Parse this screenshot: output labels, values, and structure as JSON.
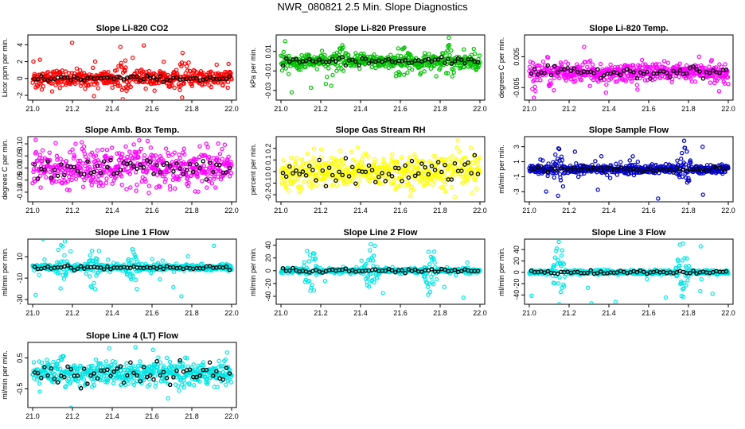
{
  "page": {
    "title": "NWR_080821  2.5 Min. Slope Diagnostics"
  },
  "chart_data": [
    {
      "type": "scatter",
      "title": "Slope Li-820 CO2",
      "ylabel": "Licor ppm per min.",
      "xlim": [
        21.0,
        22.0
      ],
      "ylim": [
        -2.0,
        4.6
      ],
      "xticks": [
        "21.0",
        "21.2",
        "21.4",
        "21.6",
        "21.8",
        "22.0"
      ],
      "yticks": [
        "-2",
        "0",
        "2",
        "4"
      ],
      "point_color": "#ff0000",
      "series_center": 0.0,
      "series_spread": 0.5,
      "outlier_spread": 2.0,
      "mean_spread": 0.15,
      "outlier_regions": [
        21.0,
        21.45,
        21.75
      ]
    },
    {
      "type": "scatter",
      "title": "Slope Li-820 Pressure",
      "ylabel": "kPa per min.",
      "xlim": [
        21.0,
        22.0
      ],
      "ylim": [
        -0.035,
        0.022
      ],
      "xticks": [
        "21.0",
        "21.2",
        "21.4",
        "21.6",
        "21.8",
        "22.0"
      ],
      "yticks": [
        "-0.03",
        "-0.01",
        "0.01"
      ],
      "point_color": "#00c000",
      "series_center": 0.0,
      "series_spread": 0.004,
      "outlier_spread": 0.015,
      "mean_spread": 0.002,
      "outlier_regions": [
        21.3,
        21.6,
        21.85
      ]
    },
    {
      "type": "scatter",
      "title": "Slope Li-820 Temp.",
      "ylabel": "degrees C per min.",
      "xlim": [
        21.0,
        22.0
      ],
      "ylim": [
        -0.0075,
        0.0105
      ],
      "xticks": [
        "21.0",
        "21.2",
        "21.4",
        "21.6",
        "21.8",
        "22.0"
      ],
      "yticks": [
        "-0.005",
        "0.005"
      ],
      "point_color": "#ff00ff",
      "series_center": 0.0,
      "series_spread": 0.0015,
      "outlier_spread": 0.005,
      "mean_spread": 0.0008,
      "outlier_regions": [
        21.02,
        21.1
      ]
    },
    {
      "type": "scatter",
      "title": "Slope Amb. Box Temp.",
      "ylabel": "degrees C per min.",
      "xlim": [
        21.0,
        22.0
      ],
      "ylim": [
        -0.12,
        0.11
      ],
      "xticks": [
        "21.0",
        "21.2",
        "21.4",
        "21.6",
        "21.8",
        "22.0"
      ],
      "yticks": [
        "-0.10",
        "-0.05",
        "0.00",
        "0.05",
        "0.10"
      ],
      "point_color": "#ff00ff",
      "series_center": 0.0,
      "series_spread": 0.04,
      "outlier_spread": 0.07,
      "mean_spread": 0.025,
      "outlier_regions": [
        21.3,
        21.7
      ]
    },
    {
      "type": "scatter",
      "title": "Slope Gas Stream RH",
      "ylabel": "percent per min.",
      "xlim": [
        21.0,
        22.0
      ],
      "ylim": [
        -0.22,
        0.26
      ],
      "xticks": [
        "21.0",
        "21.2",
        "21.4",
        "21.6",
        "21.8",
        "22.0"
      ],
      "yticks": [
        "-0.2",
        "-0.1",
        "0.0",
        "0.1",
        "0.2"
      ],
      "point_color": "#ffff00",
      "series_center": 0.0,
      "series_spread": 0.07,
      "outlier_spread": 0.12,
      "mean_spread": 0.05,
      "outlier_regions": [
        21.2,
        21.4,
        21.7
      ]
    },
    {
      "type": "scatter",
      "title": "Slope Sample Flow",
      "ylabel": "ml/min per min.",
      "xlim": [
        21.0,
        22.0
      ],
      "ylim": [
        -3.7,
        3.7
      ],
      "xticks": [
        "21.0",
        "21.2",
        "21.4",
        "21.6",
        "21.8",
        "22.0"
      ],
      "yticks": [
        "-3",
        "-1",
        "1",
        "3"
      ],
      "point_color": "#0000cc",
      "series_center": 0.0,
      "series_spread": 0.3,
      "outlier_spread": 2.8,
      "mean_spread": 0.15,
      "outlier_regions": [
        21.15,
        21.78
      ]
    },
    {
      "type": "scatter",
      "title": "Slope Line 1 Flow",
      "ylabel": "ml/min per min.",
      "xlim": [
        21.0,
        22.0
      ],
      "ylim": [
        -30,
        22
      ],
      "xticks": [
        "21.0",
        "21.2",
        "21.4",
        "21.6",
        "21.8",
        "22.0"
      ],
      "yticks": [
        "-30",
        "-10",
        "10"
      ],
      "point_color": "#00e5e5",
      "series_center": 0.0,
      "series_spread": 1.5,
      "outlier_spread": 18,
      "mean_spread": 1.0,
      "outlier_regions": [
        21.15,
        21.3,
        21.5
      ]
    },
    {
      "type": "scatter",
      "title": "Slope Line 2 Flow",
      "ylabel": "ml/min per min.",
      "xlim": [
        21.0,
        22.0
      ],
      "ylim": [
        -45,
        42
      ],
      "xticks": [
        "21.0",
        "21.2",
        "21.4",
        "21.6",
        "21.8",
        "22.0"
      ],
      "yticks": [
        "-40",
        "-20",
        "0",
        "20",
        "40"
      ],
      "point_color": "#00e5e5",
      "series_center": 0.0,
      "series_spread": 2.0,
      "outlier_spread": 35,
      "mean_spread": 1.5,
      "outlier_regions": [
        21.15,
        21.45,
        21.75
      ]
    },
    {
      "type": "scatter",
      "title": "Slope Line 3 Flow",
      "ylabel": "ml/min per min.",
      "xlim": [
        21.0,
        22.0
      ],
      "ylim": [
        -48,
        50
      ],
      "xticks": [
        "21.0",
        "21.2",
        "21.4",
        "21.6",
        "21.8",
        "22.0"
      ],
      "yticks": [
        "-40",
        "-20",
        "0",
        "20",
        "40"
      ],
      "point_color": "#00e5e5",
      "series_center": 0.0,
      "series_spread": 2.0,
      "outlier_spread": 40,
      "mean_spread": 1.5,
      "outlier_regions": [
        21.15,
        21.77
      ]
    },
    {
      "type": "scatter",
      "title": "Slope Line 4 (LT) Flow",
      "ylabel": "ml/min per min.",
      "xlim": [
        21.0,
        22.0
      ],
      "ylim": [
        -0.95,
        0.85
      ],
      "xticks": [
        "21.0",
        "21.2",
        "21.4",
        "21.6",
        "21.8",
        "22.0"
      ],
      "yticks": [
        "-0.5",
        "0.5"
      ],
      "point_color": "#00e5e5",
      "series_center": 0.0,
      "series_spread": 0.18,
      "outlier_spread": 0.55,
      "mean_spread": 0.2,
      "outlier_regions": [
        21.15,
        21.75
      ]
    }
  ]
}
